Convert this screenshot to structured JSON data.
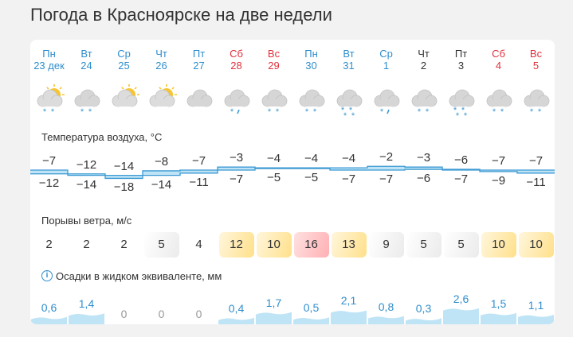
{
  "page": {
    "title": "Погода в Красноярске на две недели"
  },
  "days": [
    {
      "dow": "Пн",
      "date": "23 дек",
      "type": "weekday",
      "icon": "partly-cloudy-snow-icon"
    },
    {
      "dow": "Вт",
      "date": "24",
      "type": "weekday",
      "icon": "cloudy-snow-icon"
    },
    {
      "dow": "Ср",
      "date": "25",
      "type": "weekday",
      "icon": "partly-cloudy-icon"
    },
    {
      "dow": "Чт",
      "date": "26",
      "type": "weekday",
      "icon": "partly-cloudy-icon"
    },
    {
      "dow": "Пт",
      "date": "27",
      "type": "weekday",
      "icon": "cloudy-icon"
    },
    {
      "dow": "Сб",
      "date": "28",
      "type": "weekend",
      "icon": "cloudy-sleet-icon"
    },
    {
      "dow": "Вс",
      "date": "29",
      "type": "weekend",
      "icon": "cloudy-snow-icon"
    },
    {
      "dow": "Пн",
      "date": "30",
      "type": "weekday",
      "icon": "cloudy-snow-icon"
    },
    {
      "dow": "Вт",
      "date": "31",
      "type": "weekday",
      "icon": "cloudy-heavy-snow-icon"
    },
    {
      "dow": "Ср",
      "date": "1",
      "type": "weekday",
      "icon": "cloudy-sleet-icon"
    },
    {
      "dow": "Чт",
      "date": "2",
      "type": "black",
      "icon": "cloudy-snow-icon"
    },
    {
      "dow": "Пт",
      "date": "3",
      "type": "black",
      "icon": "cloudy-heavy-snow-icon"
    },
    {
      "dow": "Сб",
      "date": "4",
      "type": "weekend",
      "icon": "cloudy-snow-icon"
    },
    {
      "dow": "Вс",
      "date": "5",
      "type": "weekend",
      "icon": "cloudy-snow-icon"
    }
  ],
  "temperature": {
    "label": "Температура воздуха, °C",
    "max": [
      "−7",
      "−12",
      "−14",
      "−8",
      "−7",
      "−3",
      "−4",
      "−4",
      "−4",
      "−2",
      "−3",
      "−6",
      "−7",
      "−7"
    ],
    "min": [
      "−12",
      "−14",
      "−18",
      "−14",
      "−11",
      "−7",
      "−5",
      "−5",
      "−7",
      "−7",
      "−6",
      "−7",
      "−9",
      "−11"
    ]
  },
  "wind": {
    "label": "Порывы ветра, м/с",
    "values": [
      2,
      2,
      2,
      5,
      4,
      12,
      10,
      16,
      13,
      9,
      5,
      5,
      10,
      10
    ]
  },
  "precip": {
    "label": "Осадки в жидком эквиваленте, мм",
    "values": [
      "0,6",
      "1,4",
      "0",
      "0",
      "0",
      "0,4",
      "1,7",
      "0,5",
      "2,1",
      "0,8",
      "0,3",
      "2,6",
      "1,5",
      "1,1"
    ]
  },
  "colors": {
    "accent": "#2f8ecd",
    "weekend": "#e0313d",
    "band": "#bfe4f5",
    "band_line": "#3b99d4"
  }
}
